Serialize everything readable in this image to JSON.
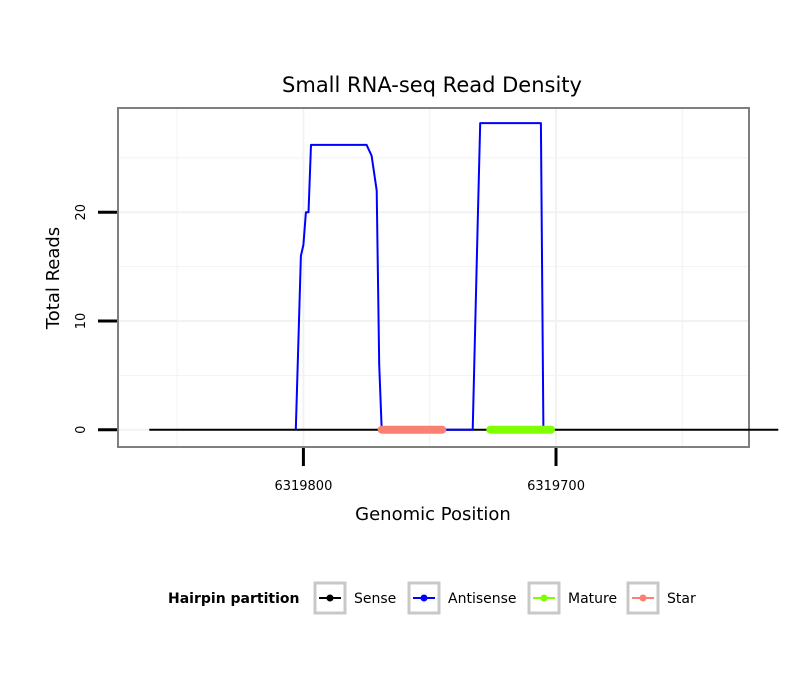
{
  "chart_data": {
    "type": "line",
    "title": "Small RNA-seq Read Density",
    "xlabel": "Genomic Position",
    "ylabel": "Total Reads",
    "x_reversed": true,
    "xlim": [
      6319873,
      6319624
    ],
    "ylim": [
      -1.5,
      29.5
    ],
    "x_ticks": [
      6319800,
      6319700
    ],
    "x_tick_labels": [
      "6319800",
      "6319700"
    ],
    "y_ticks": [
      0,
      10,
      20
    ],
    "y_tick_labels": [
      "0",
      "10",
      "20"
    ],
    "grid": true,
    "legend": {
      "title": "Hairpin partition",
      "placement": "bottom",
      "entries": [
        {
          "label": "Sense",
          "color": "#000000"
        },
        {
          "label": "Antisense",
          "color": "#0000ff"
        },
        {
          "label": "Mature",
          "color": "#7fff00"
        },
        {
          "label": "Star",
          "color": "#fa8072"
        }
      ]
    },
    "series": [
      {
        "name": "Sense",
        "color": "#000000",
        "points": [
          [
            6319861,
            0
          ],
          [
            6319612,
            0
          ]
        ]
      },
      {
        "name": "Antisense",
        "color": "#0000ff",
        "points": [
          [
            6319803,
            0
          ],
          [
            6319801,
            16
          ],
          [
            6319800,
            17
          ],
          [
            6319799,
            20
          ],
          [
            6319798,
            20
          ],
          [
            6319797,
            26.2
          ],
          [
            6319786,
            26.2
          ],
          [
            6319775,
            26.2
          ],
          [
            6319773,
            25.2
          ],
          [
            6319771,
            22
          ],
          [
            6319770,
            6
          ],
          [
            6319769,
            0
          ],
          [
            6319733,
            0
          ],
          [
            6319731,
            19
          ],
          [
            6319730,
            28.2
          ],
          [
            6319718,
            28.2
          ],
          [
            6319707,
            28.2
          ],
          [
            6319706,
            28.2
          ],
          [
            6319705,
            0
          ]
        ]
      },
      {
        "name": "Mature",
        "color": "#7fff00",
        "points": [
          [
            6319726,
            0
          ],
          [
            6319702,
            0
          ]
        ]
      },
      {
        "name": "Star",
        "color": "#fa8072",
        "points": [
          [
            6319769,
            0
          ],
          [
            6319745,
            0
          ]
        ]
      }
    ]
  }
}
